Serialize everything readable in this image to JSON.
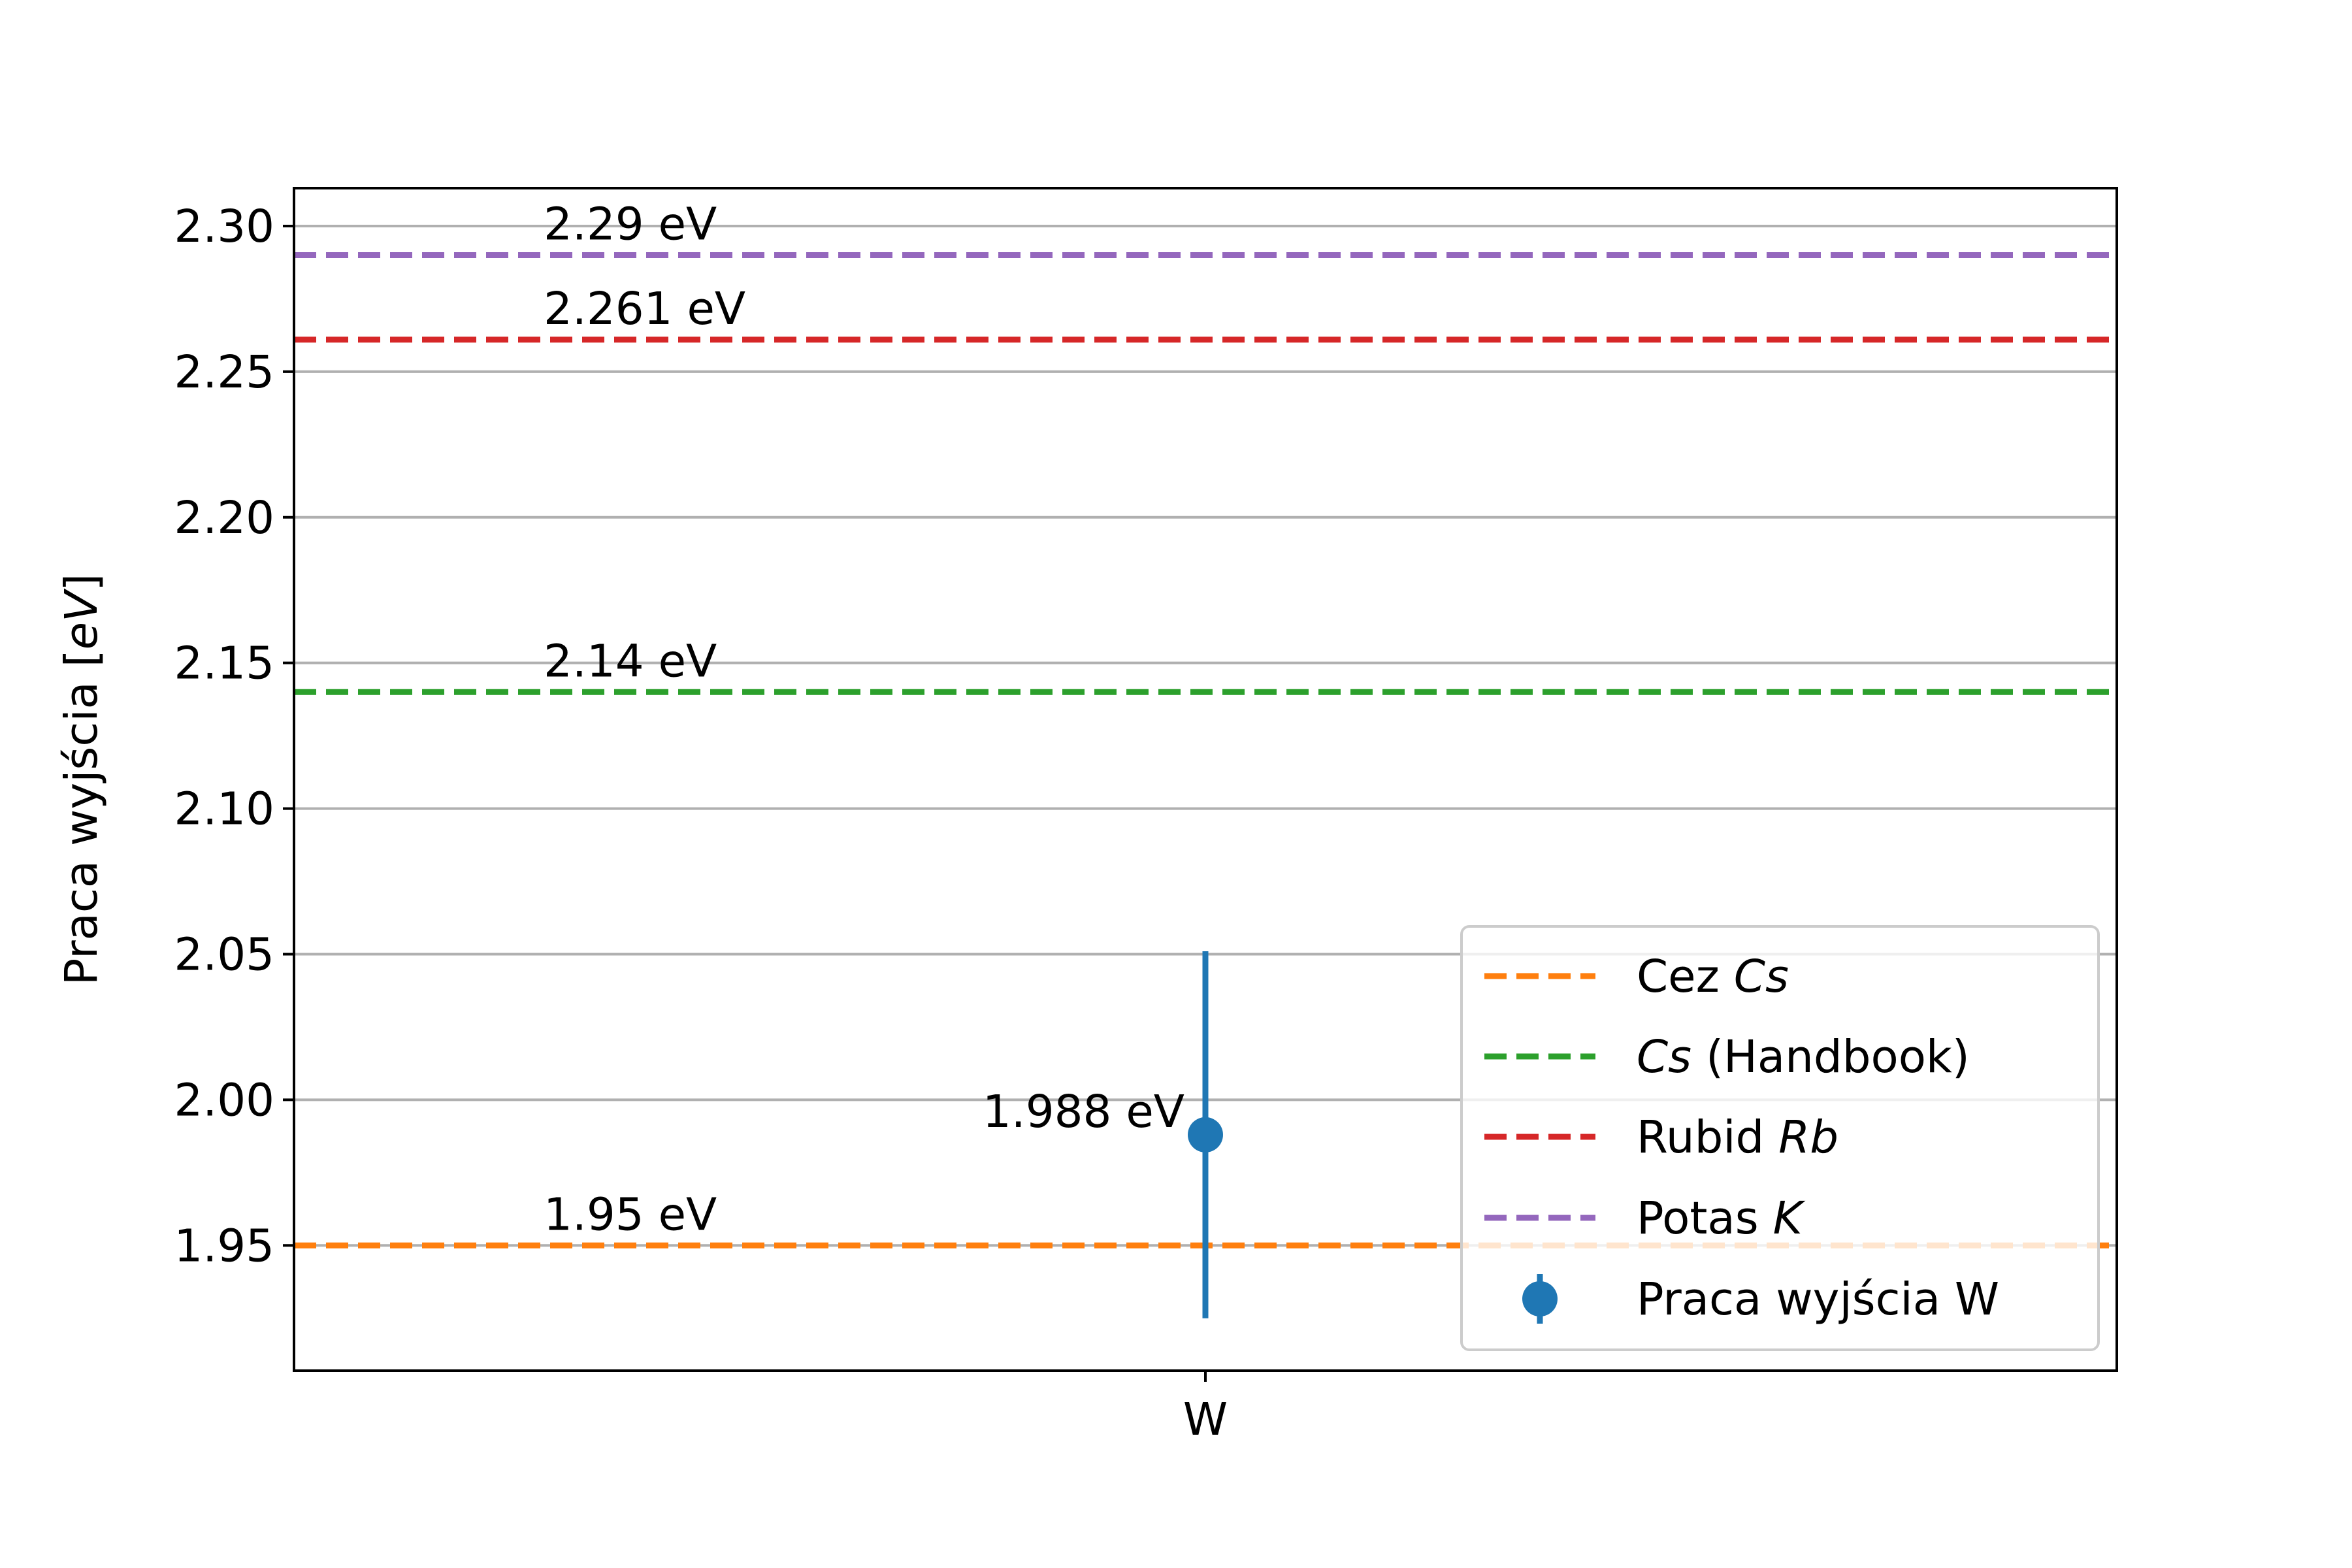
{
  "chart_data": {
    "type": "scatter",
    "title": "",
    "xlabel": "",
    "ylabel": "Praca wyjścia [eV]",
    "ylabel_parts": {
      "prefix": "Praca wyjścia [",
      "unit": "eV",
      "suffix": "]"
    },
    "ylim": [
      1.907,
      2.313
    ],
    "yticks": [
      1.95,
      2.0,
      2.05,
      2.1,
      2.15,
      2.2,
      2.25,
      2.3
    ],
    "ytick_labels": [
      "1.95",
      "2.00",
      "2.05",
      "2.10",
      "2.15",
      "2.20",
      "2.25",
      "2.30"
    ],
    "xtick_labels": [
      "W"
    ],
    "grid": "horizontal",
    "legend_position": "lower right",
    "reference_lines": [
      {
        "legend_plain": "Cez ",
        "legend_italic": "Cs",
        "legend_after": "",
        "value": 1.95,
        "label": "1.95 eV",
        "color": "#ff7f0e",
        "style": "dashed"
      },
      {
        "legend_plain": "",
        "legend_italic": "Cs",
        "legend_after": " (Handbook)",
        "value": 2.14,
        "label": "2.14 eV",
        "color": "#2ca02c",
        "style": "dashed"
      },
      {
        "legend_plain": "Rubid ",
        "legend_italic": "Rb",
        "legend_after": "",
        "value": 2.261,
        "label": "2.261 eV",
        "color": "#d62728",
        "style": "dashed"
      },
      {
        "legend_plain": "Potas ",
        "legend_italic": "K",
        "legend_after": "",
        "value": 2.29,
        "label": "2.29 eV",
        "color": "#9467bd",
        "style": "dashed"
      }
    ],
    "series": [
      {
        "name": "Praca wyjścia W",
        "x": "W",
        "y": 1.988,
        "yerr": 0.063,
        "label": "1.988 eV",
        "color": "#1f77b4"
      }
    ]
  }
}
